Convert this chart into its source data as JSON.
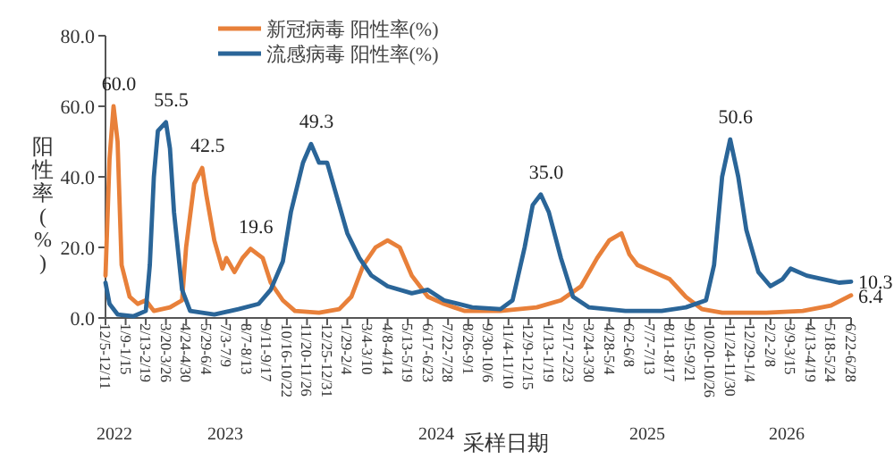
{
  "chart_data": {
    "type": "line",
    "xlabel": "采样日期",
    "ylabel": "阳性率(%)",
    "legend": "top",
    "grid": false,
    "marker": "none",
    "line_style": "solid",
    "xlim": [
      "2022-12-05",
      "2026-06-22"
    ],
    "ylim": [
      0,
      80
    ],
    "yticks": [
      {
        "value": 0,
        "label": "0.0"
      },
      {
        "value": 20,
        "label": "20.0"
      },
      {
        "value": 40,
        "label": "40.0"
      },
      {
        "value": 60,
        "label": "60.0"
      },
      {
        "value": 80,
        "label": "80.0"
      }
    ],
    "xticks": [
      {
        "value": "2022-12-05",
        "label": "12/5-12/11"
      },
      {
        "value": "2023-01-09",
        "label": "1/9-1/15"
      },
      {
        "value": "2023-02-13",
        "label": "2/13-2/19"
      },
      {
        "value": "2023-03-20",
        "label": "3/20-3/26"
      },
      {
        "value": "2023-04-24",
        "label": "4/24-4/30"
      },
      {
        "value": "2023-05-29",
        "label": "5/29-6/4"
      },
      {
        "value": "2023-07-03",
        "label": "7/3-7/9"
      },
      {
        "value": "2023-08-07",
        "label": "8/7-8/13"
      },
      {
        "value": "2023-09-11",
        "label": "9/11-9/17"
      },
      {
        "value": "2023-10-16",
        "label": "10/16-10/22"
      },
      {
        "value": "2023-11-20",
        "label": "11/20-11/26"
      },
      {
        "value": "2023-12-25",
        "label": "12/25-12/31"
      },
      {
        "value": "2024-01-29",
        "label": "1/29-2/4"
      },
      {
        "value": "2024-03-04",
        "label": "3/4-3/10"
      },
      {
        "value": "2024-04-08",
        "label": "4/8-4/14"
      },
      {
        "value": "2024-05-13",
        "label": "5/13-5/19"
      },
      {
        "value": "2024-06-17",
        "label": "6/17-6/23"
      },
      {
        "value": "2024-07-22",
        "label": "7/22-7/28"
      },
      {
        "value": "2024-08-26",
        "label": "8/26-9/1"
      },
      {
        "value": "2024-09-30",
        "label": "9/30-10/6"
      },
      {
        "value": "2024-11-04",
        "label": "11/4-11/10"
      },
      {
        "value": "2024-12-09",
        "label": "12/9-12/15"
      },
      {
        "value": "2025-01-13",
        "label": "1/13-1/19"
      },
      {
        "value": "2025-02-17",
        "label": "2/17-2/23"
      },
      {
        "value": "2025-03-24",
        "label": "3/24-3/30"
      },
      {
        "value": "2025-04-28",
        "label": "4/28-5/4"
      },
      {
        "value": "2025-06-02",
        "label": "6/2-6/8"
      },
      {
        "value": "2025-07-07",
        "label": "7/7-7/13"
      },
      {
        "value": "2025-08-11",
        "label": "8/11-8/17"
      },
      {
        "value": "2025-09-15",
        "label": "9/15-9/21"
      },
      {
        "value": "2025-10-20",
        "label": "10/20-10/26"
      },
      {
        "value": "2025-11-24",
        "label": "11/24-11/30"
      },
      {
        "value": "2025-12-29",
        "label": "12/29-1/4"
      },
      {
        "value": "2026-02-02",
        "label": "2/2-2/8"
      },
      {
        "value": "2026-03-09",
        "label": "3/9-3/15"
      },
      {
        "value": "2026-04-13",
        "label": "4/13-4/19"
      },
      {
        "value": "2026-05-18",
        "label": "5/18-5/24"
      },
      {
        "value": "2026-06-22",
        "label": "6/22-6/28"
      }
    ],
    "annotations": [
      "2022",
      "2023",
      "2024",
      "2025",
      "2026"
    ],
    "series": [
      {
        "name": "新冠病毒 阳性率(%)",
        "color": "#e8803a",
        "x": [
          "2022-12-05",
          "2022-12-12",
          "2022-12-19",
          "2022-12-26",
          "2023-01-02",
          "2023-01-16",
          "2023-01-30",
          "2023-02-13",
          "2023-02-27",
          "2023-03-27",
          "2023-04-17",
          "2023-04-24",
          "2023-05-08",
          "2023-05-22",
          "2023-05-29",
          "2023-06-12",
          "2023-06-26",
          "2023-07-03",
          "2023-07-17",
          "2023-07-31",
          "2023-08-14",
          "2023-09-04",
          "2023-09-18",
          "2023-10-09",
          "2023-10-30",
          "2023-12-11",
          "2024-01-15",
          "2024-02-05",
          "2024-02-26",
          "2024-03-18",
          "2024-04-08",
          "2024-04-29",
          "2024-05-20",
          "2024-06-17",
          "2024-07-15",
          "2024-08-19",
          "2024-10-21",
          "2024-12-23",
          "2025-02-03",
          "2025-03-10",
          "2025-04-07",
          "2025-04-28",
          "2025-05-19",
          "2025-06-02",
          "2025-06-16",
          "2025-07-14",
          "2025-08-11",
          "2025-09-08",
          "2025-10-06",
          "2025-11-10",
          "2026-01-26",
          "2026-03-30",
          "2026-05-18",
          "2026-06-22"
        ],
        "values": [
          12,
          45,
          60.0,
          50,
          15,
          6,
          4,
          5,
          2,
          3,
          5,
          20,
          38,
          42.5,
          35,
          22,
          14,
          17,
          13,
          17,
          19.6,
          17,
          10,
          5,
          2,
          1.5,
          2.5,
          6,
          15,
          20,
          22,
          20,
          12,
          6,
          4,
          2,
          2,
          3,
          5,
          9,
          17,
          22,
          24,
          18,
          15,
          13,
          11,
          6,
          2.5,
          1.5,
          1.5,
          2,
          3.5,
          6.4
        ],
        "value_labels": [
          null,
          null,
          "60.0",
          null,
          null,
          null,
          null,
          null,
          null,
          null,
          null,
          null,
          null,
          "42.5",
          null,
          null,
          null,
          null,
          null,
          null,
          "19.6",
          null,
          null,
          null,
          null,
          null,
          null,
          null,
          null,
          null,
          null,
          null,
          null,
          null,
          null,
          null,
          null,
          null,
          null,
          null,
          null,
          null,
          null,
          null,
          null,
          null,
          null,
          null,
          null,
          null,
          null,
          null,
          null,
          "6.4"
        ]
      },
      {
        "name": "流感病毒 阳性率(%)",
        "color": "#2a6598",
        "x": [
          "2022-12-05",
          "2022-12-12",
          "2022-12-26",
          "2023-01-23",
          "2023-02-13",
          "2023-02-20",
          "2023-02-27",
          "2023-03-06",
          "2023-03-20",
          "2023-03-27",
          "2023-04-03",
          "2023-04-17",
          "2023-05-01",
          "2023-06-12",
          "2023-07-24",
          "2023-08-28",
          "2023-09-18",
          "2023-10-09",
          "2023-10-23",
          "2023-11-13",
          "2023-11-27",
          "2023-12-11",
          "2023-12-25",
          "2024-01-08",
          "2024-01-29",
          "2024-02-19",
          "2024-03-11",
          "2024-04-08",
          "2024-05-20",
          "2024-06-17",
          "2024-07-15",
          "2024-09-02",
          "2024-10-21",
          "2024-11-11",
          "2024-12-02",
          "2024-12-16",
          "2024-12-30",
          "2025-01-13",
          "2025-02-03",
          "2025-02-24",
          "2025-03-24",
          "2025-05-26",
          "2025-07-28",
          "2025-09-08",
          "2025-10-13",
          "2025-10-27",
          "2025-11-10",
          "2025-11-24",
          "2025-12-08",
          "2025-12-22",
          "2026-01-12",
          "2026-02-02",
          "2026-02-23",
          "2026-03-09",
          "2026-04-06",
          "2026-05-04",
          "2026-06-01",
          "2026-06-22"
        ],
        "values": [
          10,
          4,
          1,
          0.5,
          2,
          15,
          40,
          53,
          55.5,
          48,
          30,
          8,
          2,
          1,
          2.5,
          4,
          8,
          16,
          30,
          44,
          49.3,
          44,
          44,
          36,
          24,
          17,
          12,
          9,
          7,
          8,
          5,
          3,
          2.5,
          5,
          20,
          32,
          35.0,
          30,
          17,
          6,
          3,
          2,
          2,
          3,
          5,
          15,
          40,
          50.6,
          40,
          25,
          13,
          9,
          11,
          14,
          12,
          11,
          10,
          10.3
        ],
        "value_labels": [
          null,
          null,
          null,
          null,
          null,
          null,
          null,
          null,
          "55.5",
          null,
          null,
          null,
          null,
          null,
          null,
          null,
          null,
          null,
          null,
          null,
          "49.3",
          null,
          null,
          null,
          null,
          null,
          null,
          null,
          null,
          null,
          null,
          null,
          null,
          null,
          null,
          null,
          "35.0",
          null,
          null,
          null,
          null,
          null,
          null,
          null,
          null,
          null,
          null,
          "50.6",
          null,
          null,
          null,
          null,
          null,
          null,
          null,
          null,
          null,
          "10.3"
        ]
      }
    ]
  }
}
